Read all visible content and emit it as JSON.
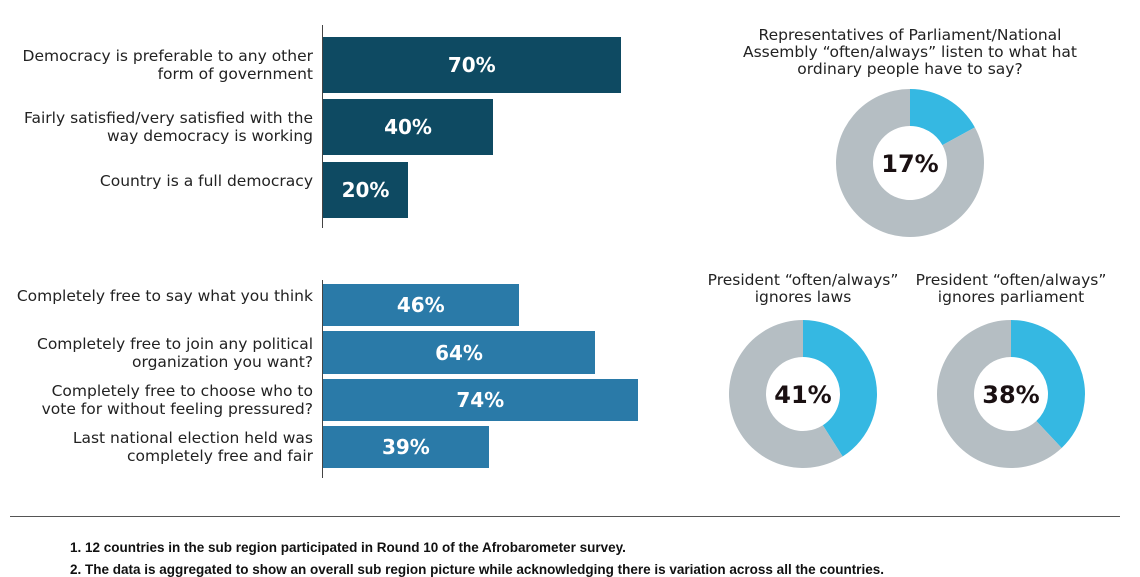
{
  "chart_data": [
    {
      "type": "bar",
      "orientation": "horizontal",
      "categories": [
        "Democracy is preferable to any other form of government",
        "Fairly satisfied/very satisfied with the way democracy is working",
        "Country is a full democracy"
      ],
      "values": [
        70,
        40,
        20
      ],
      "value_labels": [
        "70%",
        "40%",
        "20%"
      ],
      "color": "#0e4a62"
    },
    {
      "type": "bar",
      "orientation": "horizontal",
      "categories": [
        "Completely free to say what you think",
        "Completely free to join any political organization you want?",
        "Completely free to choose who  to vote for without feeling pressured?",
        "Last national election held  was completely free and fair"
      ],
      "values": [
        46,
        64,
        74,
        39
      ],
      "value_labels": [
        "46%",
        "64%",
        "74%",
        "39%"
      ],
      "color": "#2a7aa8"
    },
    {
      "type": "pie",
      "title": "Representatives of Parliament/National Assembly “often/always” listen to what hat ordinary people have to say?",
      "value": 17,
      "label": "17%",
      "colors": [
        "#35b8e2",
        "#b5bec3"
      ]
    },
    {
      "type": "pie",
      "title": "President “often/always” ignores laws",
      "value": 41,
      "label": "41%",
      "colors": [
        "#35b8e2",
        "#b5bec3"
      ]
    },
    {
      "type": "pie",
      "title": "President “often/always” ignores parliament",
      "value": 38,
      "label": "38%",
      "colors": [
        "#35b8e2",
        "#b5bec3"
      ]
    }
  ],
  "notes": [
    "1. 12 countries in the sub region participated in Round 10 of the Afrobarometer survey.",
    "2. The data is aggregated to show an overall sub region picture while acknowledging there is variation across all the countries."
  ]
}
